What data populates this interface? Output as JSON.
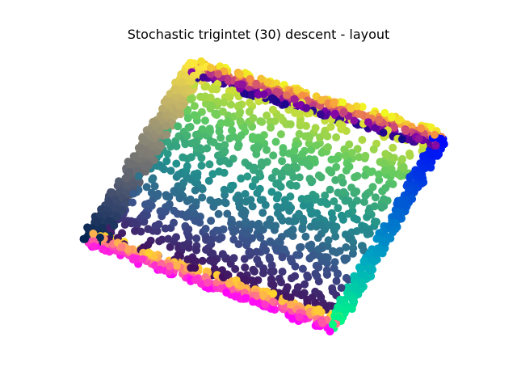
{
  "chart_data": {
    "type": "scatter",
    "title": "Stochastic trigintet (30) descent - layout",
    "xlabel": "",
    "ylabel": "",
    "axes_visible": false,
    "grid": false,
    "legend": "none",
    "xlim": [
      0,
      1
    ],
    "ylim": [
      0,
      1
    ],
    "point_count_estimate": 2400,
    "structure": {
      "shape": "parallelogram",
      "corners": {
        "top_left": [
          0.0,
          1.0
        ],
        "top_right": [
          1.0,
          1.0
        ],
        "bottom_right": [
          1.0,
          0.0
        ],
        "bottom_left": [
          0.0,
          0.0
        ]
      },
      "interior": {
        "colormap": "viridis",
        "gradient_direction": "bottom-to-top",
        "colors": [
          "#440154",
          "#3b528b",
          "#21908d",
          "#5dc963",
          "#fde725"
        ]
      },
      "edges": [
        {
          "edge": "top",
          "colormap": "plasma",
          "colors": [
            "#0d0887",
            "#7e03a8",
            "#cc4778",
            "#f89540",
            "#f0f921"
          ]
        },
        {
          "edge": "bottom",
          "colormap": "spring",
          "colors": [
            "#ff00ff",
            "#ff55aa",
            "#ffaa55",
            "#ffff00"
          ]
        },
        {
          "edge": "left",
          "colormap": "cividis",
          "colors": [
            "#00224e",
            "#35456c",
            "#666970",
            "#948e77",
            "#c8b866",
            "#fee838"
          ]
        },
        {
          "edge": "right",
          "colormap": "winter",
          "colors": [
            "#00ff80",
            "#00aac0",
            "#0055d5",
            "#0000ff"
          ]
        }
      ]
    }
  }
}
